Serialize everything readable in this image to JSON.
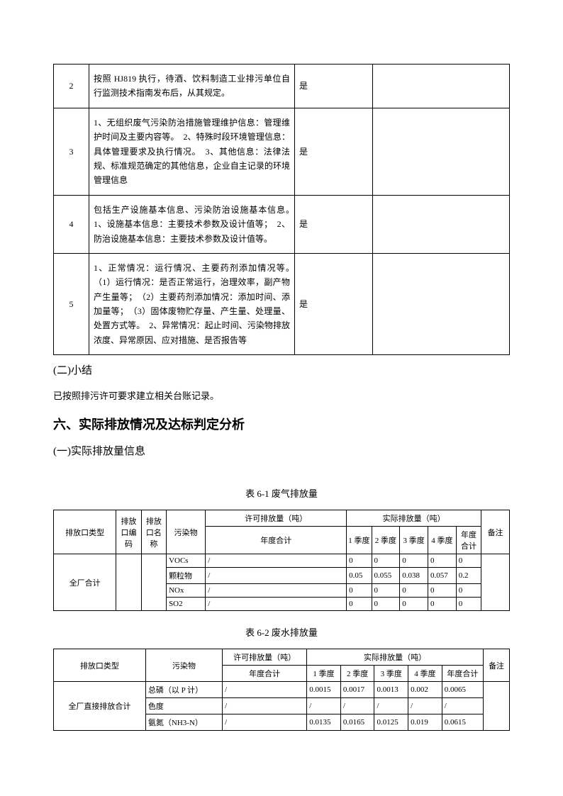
{
  "table1": {
    "rows": [
      {
        "num": "2",
        "desc": "按照 HJ819 执行，待酒、饮料制造工业排污单位自行监测技术指南发布后，从其规定。",
        "yes": "是",
        "last": ""
      },
      {
        "num": "3",
        "desc": "1、无组织废气污染防治措施管理维护信息：管理维护时间及主要内容等。　2、特殊时段环境管理信息：具体管理要求及执行情况。　3、其他信息：法律法规、标准规范确定的其他信息，企业自主记录的环境管理信息",
        "yes": "是",
        "last": ""
      },
      {
        "num": "4",
        "desc": "包括生产设施基本信息、污染防治设施基本信息。　1、设施基本信息：主要技术参数及设计值等；　2、防治设施基本信息：主要技术参数及设计值等。",
        "yes": "是",
        "last": ""
      },
      {
        "num": "5",
        "desc": "1、正常情况：运行情况、主要药剂添加情况等。　（1）运行情况：是否正常运行，治理效率，副产物产生量等；　（2）主要药剂添加情况：添加时间、添加量等；　（3）固体废物贮存量、产生量、处理量、处置方式等。　2、异常情况：起止时间、污染物排放浓度、异常原因、应对措施、是否报告等",
        "yes": "是",
        "last": ""
      }
    ]
  },
  "sec_summary_heading": "(二)小结",
  "summary_text": "已按照排污许可要求建立相关台账记录。",
  "sec6_heading": "六、实际排放情况及达标判定分析",
  "sec6_1_heading": "(一)实际排放量信息",
  "table61": {
    "caption": "表 6-1  废气排放量",
    "headers": {
      "outlet_type": "排放口类型",
      "outlet_code": "排放口编码",
      "outlet_name": "排放口名称",
      "pollutant": "污染物",
      "permit_amount": "许可排放量（吨）",
      "actual_amount": "实际排放量（吨）",
      "annual_total": "年度合计",
      "q1": "1 季度",
      "q2": "2 季度",
      "q3": "3 季度",
      "q4": "4 季度",
      "annual": "年度合计",
      "remark": "备注"
    },
    "group_label": "全厂合计",
    "rows": [
      {
        "pollutant": "VOCs",
        "permit": "/",
        "q1": "0",
        "q2": "0",
        "q3": "0",
        "q4": "0",
        "annual": "0"
      },
      {
        "pollutant": "颗粒物",
        "permit": "/",
        "q1": "0.05",
        "q2": "0.055",
        "q3": "0.038",
        "q4": "0.057",
        "annual": "0.2"
      },
      {
        "pollutant": "NOx",
        "permit": "/",
        "q1": "0",
        "q2": "0",
        "q3": "0",
        "q4": "0",
        "annual": "0"
      },
      {
        "pollutant": "SO2",
        "permit": "/",
        "q1": "0",
        "q2": "0",
        "q3": "0",
        "q4": "0",
        "annual": "0"
      }
    ]
  },
  "table62": {
    "caption": "表 6-2  废水排放量",
    "headers": {
      "outlet_type": "排放口类型",
      "pollutant": "污染物",
      "permit_amount": "许可排放量（吨）",
      "actual_amount": "实际排放量（吨）",
      "annual_total": "年度合计",
      "q1": "1 季度",
      "q2": "2 季度",
      "q3": "3 季度",
      "q4": "4 季度",
      "annual": "年度合计",
      "remark": "备注"
    },
    "group_label": "全厂直接排放合计",
    "rows": [
      {
        "pollutant": "总磷（以 P 计）",
        "permit": "/",
        "q1": "0.0015",
        "q2": "0.0017",
        "q3": "0.0013",
        "q4": "0.002",
        "annual": "0.0065"
      },
      {
        "pollutant": "色度",
        "permit": "/",
        "q1": "/",
        "q2": "/",
        "q3": "/",
        "q4": "/",
        "annual": "/"
      },
      {
        "pollutant": "氨氮（NH3-N）",
        "permit": "/",
        "q1": "0.0135",
        "q2": "0.0165",
        "q3": "0.0125",
        "q4": "0.019",
        "annual": "0.0615"
      }
    ]
  }
}
